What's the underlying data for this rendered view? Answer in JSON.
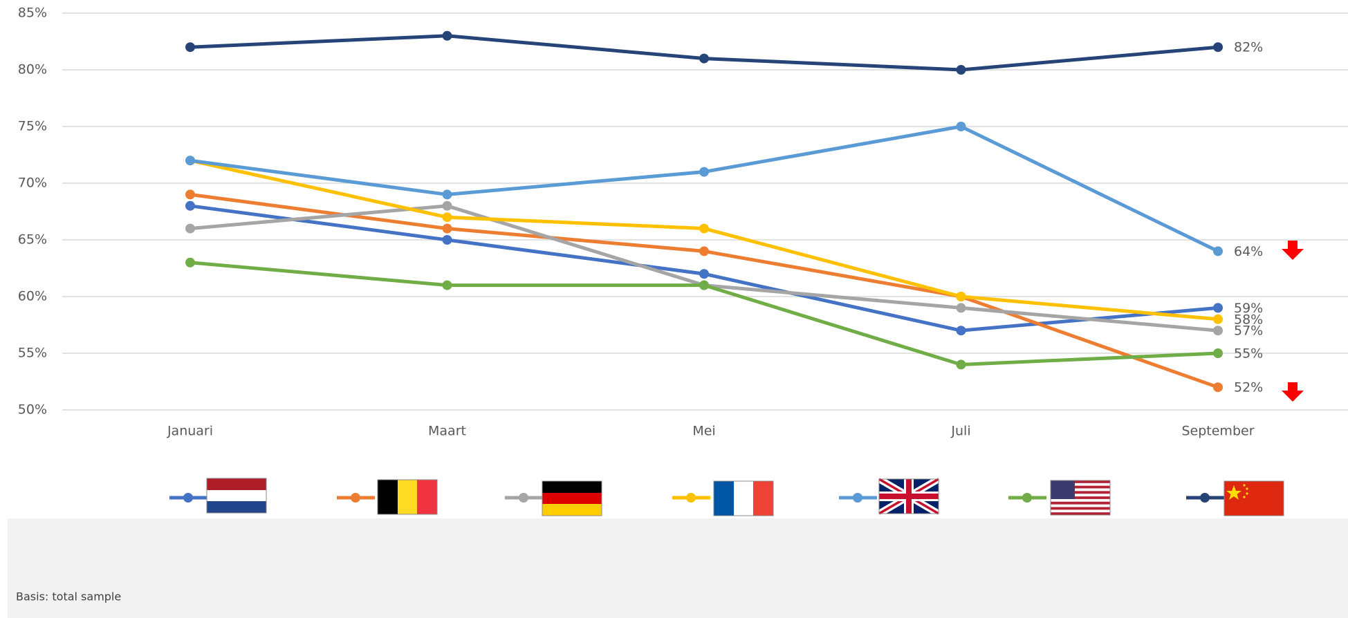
{
  "chart_data": {
    "type": "line",
    "categories": [
      "Januari",
      "Maart",
      "Mei",
      "Juli",
      "September"
    ],
    "series": [
      {
        "color": "#4472c4",
        "values": [
          68,
          65,
          62,
          57,
          59
        ],
        "value_labels": [
          null,
          null,
          null,
          null,
          "59%"
        ]
      },
      {
        "color": "#ed7d31",
        "values": [
          69,
          66,
          64,
          60,
          52
        ],
        "value_labels": [
          null,
          null,
          null,
          null,
          "52%"
        ]
      },
      {
        "color": "#a5a5a5",
        "values": [
          66,
          68,
          61,
          59,
          57
        ],
        "value_labels": [
          null,
          null,
          null,
          null,
          "57%"
        ]
      },
      {
        "color": "#ffc000",
        "values": [
          72,
          67,
          66,
          60,
          58
        ],
        "value_labels": [
          null,
          null,
          null,
          null,
          "58%"
        ]
      },
      {
        "color": "#5b9bd5",
        "values": [
          72,
          69,
          71,
          75,
          64
        ],
        "value_labels": [
          null,
          null,
          null,
          null,
          "64%"
        ]
      },
      {
        "color": "#70ad47",
        "values": [
          63,
          61,
          61,
          54,
          55
        ],
        "value_labels": [
          null,
          null,
          null,
          null,
          "55%"
        ]
      },
      {
        "color": "#264478",
        "values": [
          82,
          83,
          81,
          80,
          82
        ],
        "value_labels": [
          null,
          null,
          null,
          null,
          "82%"
        ]
      }
    ],
    "ylim": [
      50,
      85
    ],
    "yticks": [
      {
        "value": 50,
        "label": "50%"
      },
      {
        "value": 55,
        "label": "55%"
      },
      {
        "value": 60,
        "label": "60%"
      },
      {
        "value": 65,
        "label": "65%"
      },
      {
        "value": 70,
        "label": "70%"
      },
      {
        "value": 75,
        "label": "75%"
      },
      {
        "value": 80,
        "label": "80%"
      },
      {
        "value": 85,
        "label": "85%"
      }
    ],
    "grid": true,
    "footnote": "Basis: total sample"
  }
}
